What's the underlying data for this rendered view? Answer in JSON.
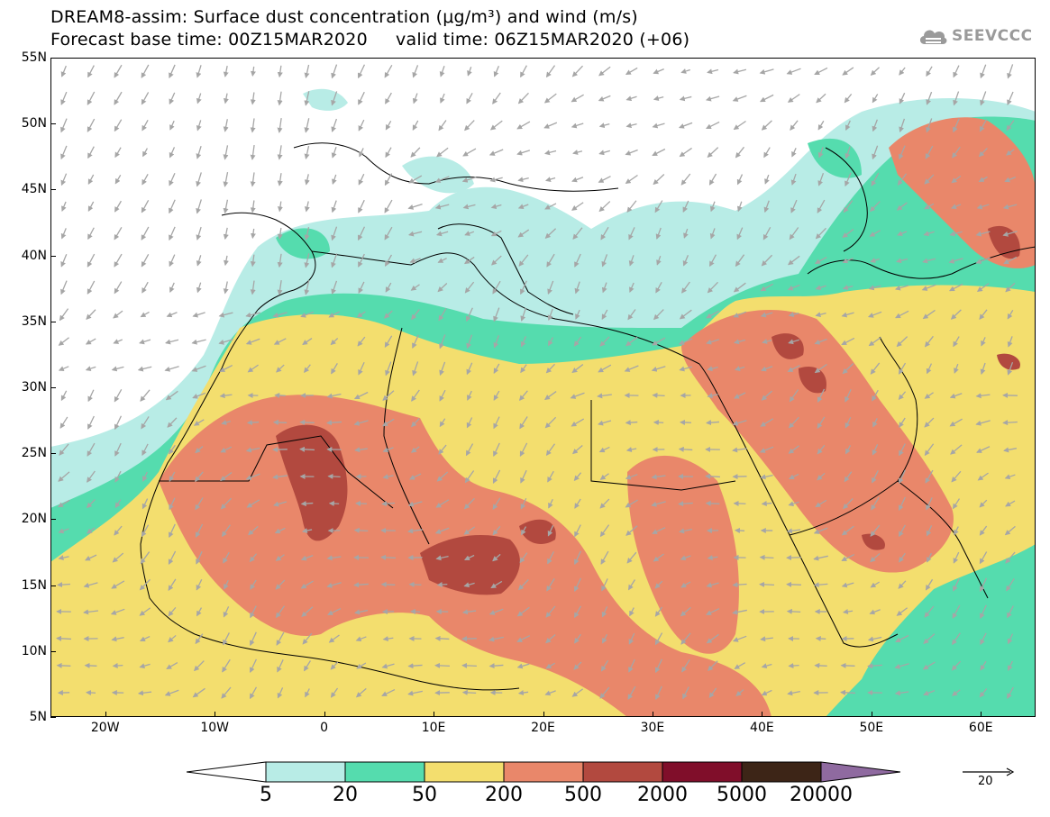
{
  "header": {
    "title_line1": "DREAM8-assim: Surface dust concentration (μg/m³) and wind (m/s)",
    "title_line2": "Forecast base time: 00Z15MAR2020     valid time: 06Z15MAR2020 (+06)"
  },
  "logo": {
    "text": "SEEVCCC",
    "icon": "cloud-icon"
  },
  "axes": {
    "latitude_labels": [
      "55N",
      "50N",
      "45N",
      "40N",
      "35N",
      "30N",
      "25N",
      "20N",
      "15N",
      "10N",
      "5N"
    ],
    "longitude_labels": [
      "20W",
      "10W",
      "0",
      "10E",
      "20E",
      "30E",
      "40E",
      "50E",
      "60E"
    ],
    "lat_range": [
      5,
      55
    ],
    "lon_range": [
      -25,
      65
    ]
  },
  "colorbar": {
    "levels": [
      "5",
      "20",
      "50",
      "200",
      "500",
      "2000",
      "5000",
      "20000"
    ],
    "colors": [
      "#ffffff",
      "#b8ece6",
      "#55dcae",
      "#f3de6e",
      "#e9876a",
      "#b2493f",
      "#800e2a",
      "#3d2517",
      "#8f6aa0"
    ]
  },
  "wind_reference": {
    "label": "20"
  },
  "map": {
    "land_color": "#ffffff",
    "border_color": "#000000",
    "wind_arrow_color": "#a6a6a6"
  }
}
